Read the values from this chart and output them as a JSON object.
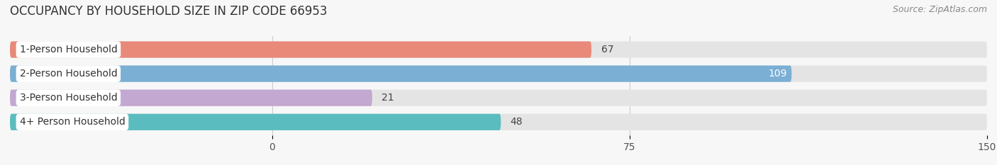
{
  "title": "OCCUPANCY BY HOUSEHOLD SIZE IN ZIP CODE 66953",
  "source": "Source: ZipAtlas.com",
  "categories": [
    "1-Person Household",
    "2-Person Household",
    "3-Person Household",
    "4+ Person Household"
  ],
  "values": [
    67,
    109,
    21,
    48
  ],
  "bar_colors": [
    "#E8897A",
    "#7BAFD4",
    "#C3A8D1",
    "#5BBCBF"
  ],
  "xlim": [
    -55,
    150
  ],
  "xticks": [
    0,
    75,
    150
  ],
  "background_color": "#f7f7f7",
  "bar_background_color": "#e4e4e4",
  "title_fontsize": 12,
  "source_fontsize": 9,
  "tick_fontsize": 10,
  "label_fontsize": 10,
  "value_fontsize": 10
}
